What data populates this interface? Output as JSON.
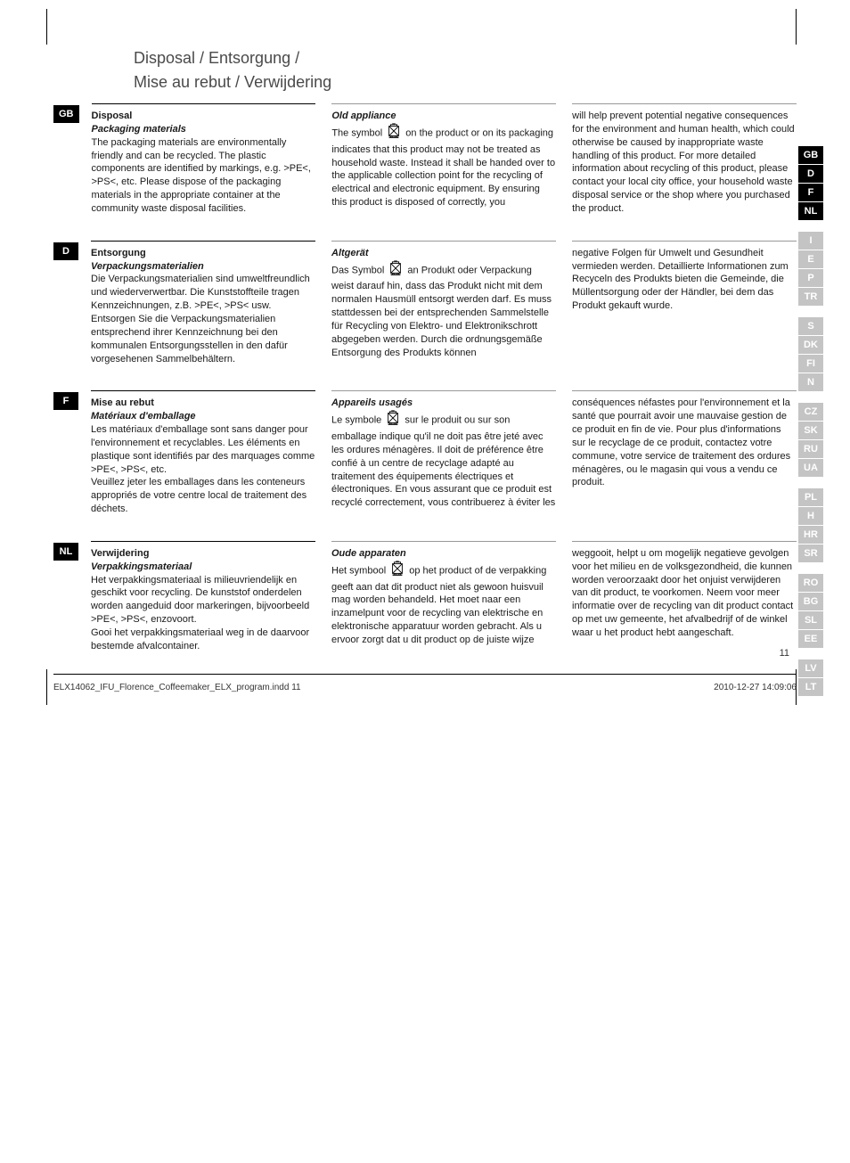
{
  "page_title_line1": "Disposal  /  Entsorgung  /",
  "page_title_line2": "Mise au rebut  /  Verwijdering",
  "languages": [
    {
      "code": "GB",
      "title": "Disposal",
      "sub1": "Packaging materials",
      "col1": "The packaging materials are environmentally friendly and can be recycled. The plastic components are identified by markings, e.g. >PE<, >PS<, etc. Please dispose of the packaging materials in the appropriate container at the community waste disposal facilities.",
      "sub2": "Old appliance",
      "col2a": "The symbol",
      "col2b": "on the product or on its packaging indicates that this product may not be treated as household waste. Instead it shall be handed over to the applicable collection point for the recycling of electrical and electronic equipment. By ensuring this product is disposed of correctly, you",
      "col3": "will help prevent potential negative consequences for the environment and human health, which could otherwise be caused by inappropriate waste handling of this product. For more detailed information about recycling of this product, please contact your local city office, your household waste disposal service or the shop where you purchased the product."
    },
    {
      "code": "D",
      "title": "Entsorgung",
      "sub1": "Verpackungsmaterialien",
      "col1": "Die Verpackungsmaterialien sind umweltfreundlich und wiederverwertbar. Die Kunststoffteile tragen Kennzeichnungen, z.B. >PE<, >PS< usw. Entsorgen Sie die Verpackungsmaterialien entsprechend ihrer Kennzeichnung bei den kommunalen Entsorgungsstellen in den dafür vorgesehenen Sammelbehältern.",
      "sub2": "Altgerät",
      "col2a": "Das Symbol",
      "col2b": "an Produkt oder Verpackung weist darauf hin, dass das Produkt nicht mit dem normalen Hausmüll entsorgt werden darf. Es muss stattdessen bei der entsprechenden Sammelstelle für Recycling von Elektro- und Elektronikschrott abgegeben werden. Durch die ordnungsgemäße Entsorgung des Produkts können",
      "col3": "negative Folgen für Umwelt und Gesundheit vermieden werden. Detaillierte Informationen zum Recyceln des Produkts bieten die Gemeinde, die Müllentsorgung oder der Händler, bei dem das Produkt gekauft wurde."
    },
    {
      "code": "F",
      "title": "Mise au rebut",
      "sub1": "Matériaux d'emballage",
      "col1": "Les matériaux d'emballage sont sans danger pour l'environnement et recyclables. Les éléments en plastique sont identifiés par des marquages comme >PE<, >PS<, etc.\nVeuillez jeter les emballages dans les conteneurs appropriés de votre centre local de traitement des déchets.",
      "sub2": "Appareils usagés",
      "col2a": "Le symbole",
      "col2b": "sur le produit ou sur son emballage indique qu'il ne doit pas être jeté avec les ordures ménagères. Il doit de préférence être confié à un centre de recyclage adapté au traitement des équipements électriques et électroniques. En vous assurant que ce produit est recyclé correctement, vous contribuerez à éviter les",
      "col3": "conséquences néfastes pour l'environnement et la santé que pourrait avoir une mauvaise gestion de ce produit en fin de vie. Pour plus d'informations sur le recyclage de ce produit, contactez votre commune, votre service de traitement des ordures ménagères, ou le magasin qui vous a vendu ce produit."
    },
    {
      "code": "NL",
      "title": "Verwijdering",
      "sub1": "Verpakkingsmateriaal",
      "col1": "Het verpakkingsmateriaal is milieuvriendelijk en geschikt voor recycling. De kunststof onderdelen worden aangeduid door markeringen, bijvoorbeeld >PE<, >PS<, enzovoort.\nGooi het verpakkingsmateriaal weg in de daarvoor bestemde afvalcontainer.",
      "sub2": "Oude apparaten",
      "col2a": "Het symbool",
      "col2b": "op het product of de verpakking geeft aan dat dit product niet als gewoon huisvuil mag worden behandeld. Het moet naar een inzamelpunt voor de recycling van elektrische en elektronische apparatuur worden gebracht. Als u ervoor zorgt dat u dit product op de juiste wijze",
      "col3": "weggooit, helpt u om mogelijk negatieve gevolgen voor het milieu en de volksgezondheid, die kunnen worden veroorzaakt door het onjuist verwijderen van dit product, te voorkomen. Neem voor meer informatie over de recycling van dit product contact op met uw gemeente, het afvalbedrijf of de winkel waar u het product hebt aangeschaft."
    }
  ],
  "tabs": [
    {
      "codes": [
        "GB",
        "D",
        "F",
        "NL"
      ],
      "active": true
    },
    {
      "codes": [
        "I",
        "E",
        "P",
        "TR"
      ],
      "active": false
    },
    {
      "codes": [
        "S",
        "DK",
        "FI",
        "N"
      ],
      "active": false
    },
    {
      "codes": [
        "CZ",
        "SK",
        "RU",
        "UA"
      ],
      "active": false
    },
    {
      "codes": [
        "PL",
        "H",
        "HR",
        "SR"
      ],
      "active": false
    },
    {
      "codes": [
        "RO",
        "BG",
        "SL",
        "EE"
      ],
      "active": false
    },
    {
      "codes": [
        "LV",
        "LT"
      ],
      "active": false
    }
  ],
  "page_number": "11",
  "footer_left": "ELX14062_IFU_Florence_Coffeemaker_ELX_program.indd   11",
  "footer_right": "2010-12-27   14:09:06"
}
